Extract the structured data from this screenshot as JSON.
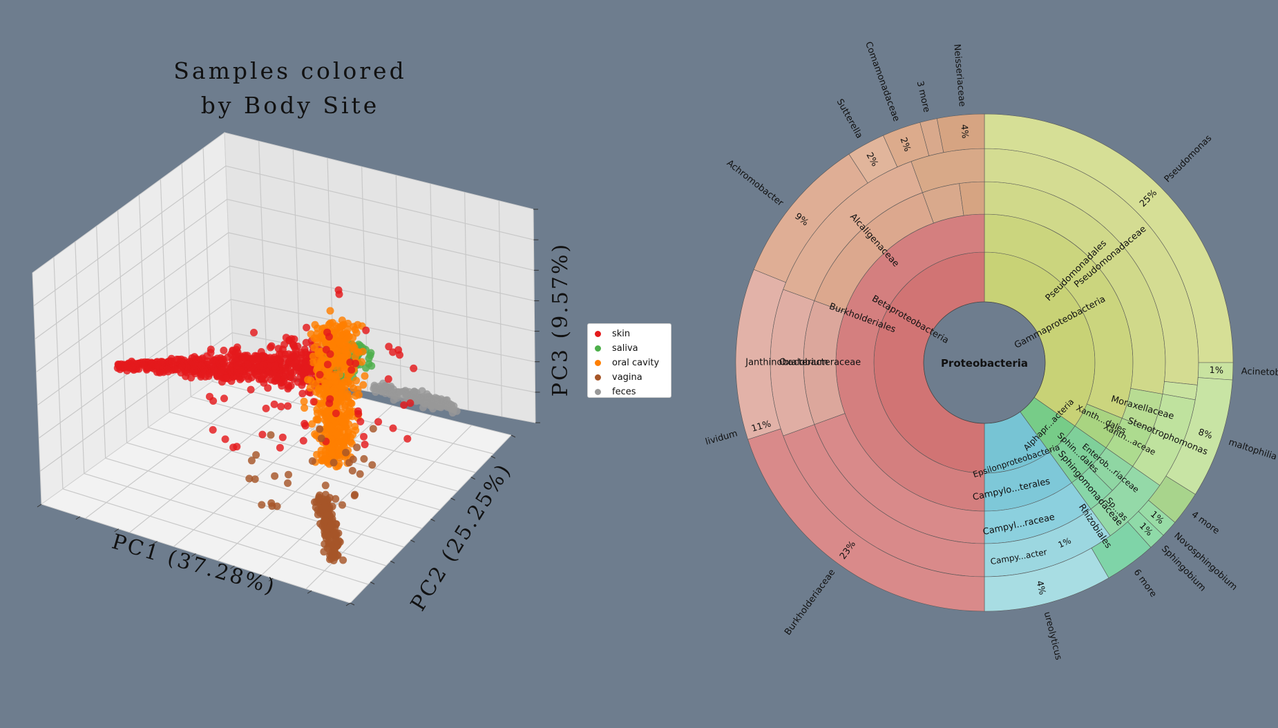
{
  "pca": {
    "title_line1": "Samples colored",
    "title_line2": "by Body Site",
    "x_label": "PC1 (37.28%)",
    "y_label": "PC2 (25.25%)",
    "z_label": "PC3 (9.57%)"
  },
  "legend": {
    "items": [
      {
        "label": "skin",
        "color": "#e41a1c"
      },
      {
        "label": "saliva",
        "color": "#4daf4a"
      },
      {
        "label": "oral cavity",
        "color": "#ff7f00"
      },
      {
        "label": "vagina",
        "color": "#a65628"
      },
      {
        "label": "feces",
        "color": "#999999"
      }
    ]
  },
  "krona": {
    "center_label": "Proteobacteria",
    "class_labels": [
      "Betaproteobacteria",
      "Gammaproteobacteria",
      "Alphapr...acteria",
      "Epsilonproteobacteria"
    ],
    "order_labels": [
      "Burkholderiales",
      "Pseudomonadales",
      "Xanth...dales",
      "Sphin...dales",
      "Campylo...terales"
    ],
    "family_labels": [
      "Oxalobacteraceae",
      "Alcaligenaceae",
      "Pseudomonadaceae",
      "Moraxellaceae",
      "Xanth...aceae",
      "Enterob...riaceae",
      "Sphingomonadaceae",
      "Campyl...raceae"
    ],
    "genus_labels": [
      "Janthinobacterium",
      "Stenotrophomonas",
      "Rhizobiales",
      "Sp...as",
      "Campy...acter",
      "1%"
    ],
    "outer_labels": [
      {
        "label": "Burkholderiaceae",
        "pct": "23%"
      },
      {
        "label": "lividum",
        "pct": "11%"
      },
      {
        "label": "Achromobacter",
        "pct": "9%"
      },
      {
        "label": "Sutterella",
        "pct": "2%"
      },
      {
        "label": "Comamonadaceae",
        "pct": "2%"
      },
      {
        "label": "3 more",
        "pct": ""
      },
      {
        "label": "Neisseriaceae",
        "pct": "4%"
      },
      {
        "label": "Pseudomonas",
        "pct": "25%"
      },
      {
        "label": "Acinetobacter",
        "pct": "1%"
      },
      {
        "label": "maltophilia",
        "pct": "8%"
      },
      {
        "label": "4 more",
        "pct": ""
      },
      {
        "label": "Novosphingobium",
        "pct": "1%"
      },
      {
        "label": "Sphingobium",
        "pct": "1%"
      },
      {
        "label": "6 more",
        "pct": ""
      },
      {
        "label": "ureolyticus",
        "pct": "4%"
      }
    ]
  },
  "chart_data": [
    {
      "type": "scatter",
      "title": "Samples colored by Body Site",
      "xlabel": "PC1 (37.28%)",
      "ylabel": "PC2 (25.25%)",
      "zlabel": "PC3 (9.57%)",
      "projection": "3d",
      "legend_position": "right",
      "series": [
        {
          "name": "skin",
          "color": "#e41a1c"
        },
        {
          "name": "saliva",
          "color": "#4daf4a"
        },
        {
          "name": "oral cavity",
          "color": "#ff7f00"
        },
        {
          "name": "vagina",
          "color": "#a65628"
        },
        {
          "name": "feces",
          "color": "#999999"
        }
      ]
    },
    {
      "type": "pie",
      "subtype": "sunburst",
      "root": "Proteobacteria",
      "slices": [
        {
          "label": "Pseudomonas",
          "value": 25,
          "color": "#d6df96"
        },
        {
          "label": "Acinetobacter",
          "value": 1,
          "color": "#c9e3a0"
        },
        {
          "label": "maltophilia",
          "value": 8,
          "color": "#c8e4a4"
        },
        {
          "label": "4 more",
          "value": 2,
          "color": "#a8d48c"
        },
        {
          "label": "Novosphingobium",
          "value": 1,
          "color": "#98dca6"
        },
        {
          "label": "Sphingobium",
          "value": 1,
          "color": "#8fdaa8"
        },
        {
          "label": "6 more",
          "value": 3,
          "color": "#7fd4a8"
        },
        {
          "label": "ureolyticus",
          "value": 4,
          "color": "#a8dde3"
        },
        {
          "label": "Burkholderiaceae",
          "value": 23,
          "color": "#d98a8a"
        },
        {
          "label": "lividum",
          "value": 11,
          "color": "#e2b2a8"
        },
        {
          "label": "Achromobacter",
          "value": 9,
          "color": "#dfae95"
        },
        {
          "label": "Sutterella",
          "value": 2,
          "color": "#e1b59b"
        },
        {
          "label": "Comamonadaceae",
          "value": 2,
          "color": "#dcab8c"
        },
        {
          "label": "3 more",
          "value": 1,
          "color": "#d9a98c"
        },
        {
          "label": "Neisseriaceae",
          "value": 4,
          "color": "#d6a482"
        }
      ]
    }
  ]
}
